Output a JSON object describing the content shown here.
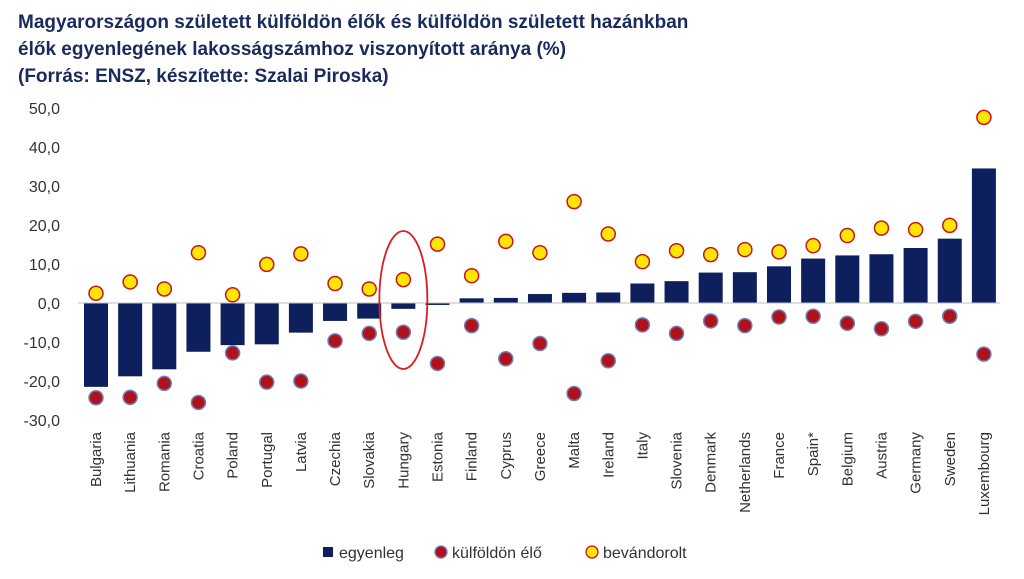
{
  "title": {
    "line1": "Magyarországon született külföldön élők és külföldön született hazánkban",
    "line2": "élők egyenlegének lakosságszámhoz viszonyított aránya (%)",
    "line3": "(Forrás: ENSZ, készítette: Szalai Piroska)"
  },
  "colors": {
    "bar": "#0d1f5c",
    "kulfoldon_elo": "#b0121b",
    "kulfoldon_elo_edge": "#6f7fb8",
    "bevandorolt": "#ffe600",
    "bevandorolt_edge": "#c9141c",
    "highlight": "#d42020",
    "axis_text": "#333333"
  },
  "chart_data": {
    "type": "bar",
    "ylim": [
      -30,
      50
    ],
    "yticks": [
      "50,0",
      "40,0",
      "30,0",
      "20,0",
      "10,0",
      "0,0",
      "-10,0",
      "-20,0",
      "-30,0"
    ],
    "ytick_values": [
      50,
      40,
      30,
      20,
      10,
      0,
      -10,
      -20,
      -30
    ],
    "categories": [
      "Bulgaria",
      "Lithuania",
      "Romania",
      "Croatia",
      "Poland",
      "Portugal",
      "Latvia",
      "Czechia",
      "Slovakia",
      "Hungary",
      "Estonia",
      "Finland",
      "Cyprus",
      "Greece",
      "Malta",
      "Ireland",
      "Italy",
      "Slovenia",
      "Denmark",
      "Netherlands",
      "France",
      "Spain*",
      "Belgium",
      "Austria",
      "Germany",
      "Sweden",
      "Luxembourg"
    ],
    "highlighted_category": "Hungary",
    "grid": false,
    "legend_position": "bottom",
    "series": [
      {
        "name": "egyenleg",
        "kind": "bar",
        "values": [
          -21.5,
          -18.8,
          -17.0,
          -12.5,
          -10.8,
          -10.6,
          -7.6,
          -4.6,
          -4.0,
          -1.5,
          -0.5,
          1.2,
          1.3,
          2.3,
          2.6,
          2.7,
          5.0,
          5.6,
          7.8,
          7.9,
          9.4,
          11.4,
          12.2,
          12.5,
          14.1,
          16.5,
          34.5
        ]
      },
      {
        "name": "külföldön élő",
        "kind": "point",
        "values": [
          -24.3,
          -24.2,
          -20.6,
          -25.5,
          -12.8,
          -20.3,
          -20.0,
          -9.7,
          -7.8,
          -7.5,
          -15.5,
          -5.8,
          -14.3,
          -10.4,
          -23.2,
          -14.8,
          -5.6,
          -7.8,
          -4.6,
          -5.8,
          -3.6,
          -3.4,
          -5.2,
          -6.6,
          -4.7,
          -3.4,
          -13.1
        ]
      },
      {
        "name": "bevándorolt",
        "kind": "point",
        "values": [
          2.5,
          5.4,
          3.6,
          12.9,
          2.1,
          9.9,
          12.6,
          5.0,
          3.6,
          6.0,
          15.1,
          7.0,
          15.8,
          12.9,
          26.0,
          17.7,
          10.6,
          13.4,
          12.4,
          13.7,
          13.1,
          14.7,
          17.3,
          19.2,
          18.8,
          19.9,
          47.6
        ]
      }
    ]
  },
  "legend": [
    {
      "label": "egyenleg",
      "marker": "square"
    },
    {
      "label": "külföldön élő",
      "marker": "red-dot"
    },
    {
      "label": "bevándorolt",
      "marker": "yellow-dot"
    }
  ]
}
